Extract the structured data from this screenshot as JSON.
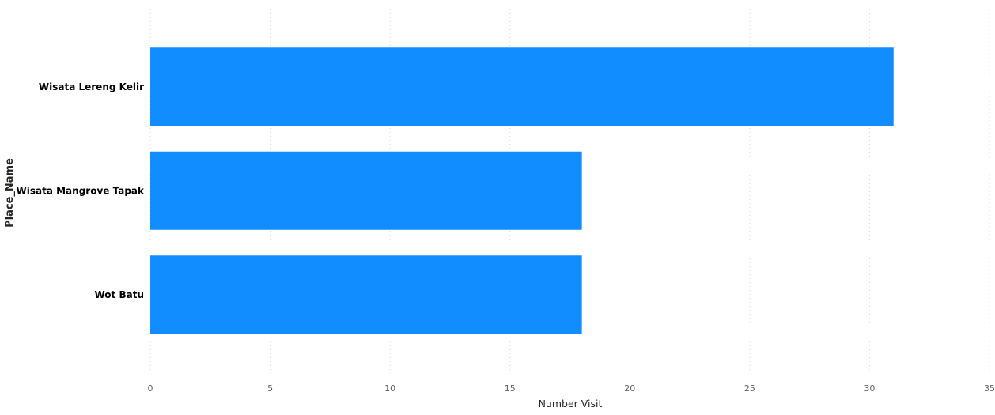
{
  "chart_data": {
    "type": "bar",
    "orientation": "horizontal",
    "categories": [
      "Wisata Lereng Kelir",
      "Wisata Mangrove Tapak",
      "Wot Batu"
    ],
    "values": [
      31,
      18,
      18
    ],
    "xlabel": "Number Visit",
    "ylabel": "Place_Name",
    "xlim": [
      0,
      35
    ],
    "xticks": [
      0,
      5,
      10,
      15,
      20,
      25,
      30,
      35
    ],
    "grid": true,
    "legend": "none",
    "bar_color": "#118DFF"
  }
}
